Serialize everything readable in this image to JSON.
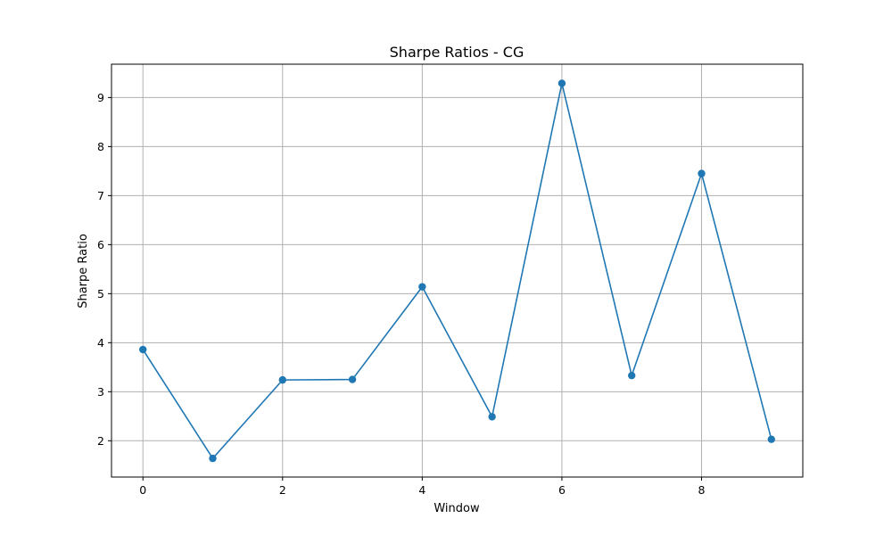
{
  "chart_data": {
    "type": "line",
    "title": "Sharpe Ratios - CG",
    "xlabel": "Window",
    "ylabel": "Sharpe Ratio",
    "x": [
      0,
      1,
      2,
      3,
      4,
      5,
      6,
      7,
      8,
      9
    ],
    "series": [
      {
        "values": [
          3.86,
          1.64,
          3.24,
          3.25,
          5.14,
          2.49,
          9.29,
          3.33,
          7.45,
          2.03
        ],
        "color": "#1f77b4",
        "marker": "circle"
      }
    ],
    "xticks": [
      0,
      2,
      4,
      6,
      8
    ],
    "xtick_labels": [
      "0",
      "2",
      "4",
      "6",
      "8"
    ],
    "yticks": [
      2,
      3,
      4,
      5,
      6,
      7,
      8,
      9
    ],
    "ytick_labels": [
      "2",
      "3",
      "4",
      "5",
      "6",
      "7",
      "8",
      "9"
    ],
    "xlim": [
      -0.45,
      9.45
    ],
    "ylim": [
      1.26,
      9.68
    ],
    "grid": true,
    "legend": false
  }
}
